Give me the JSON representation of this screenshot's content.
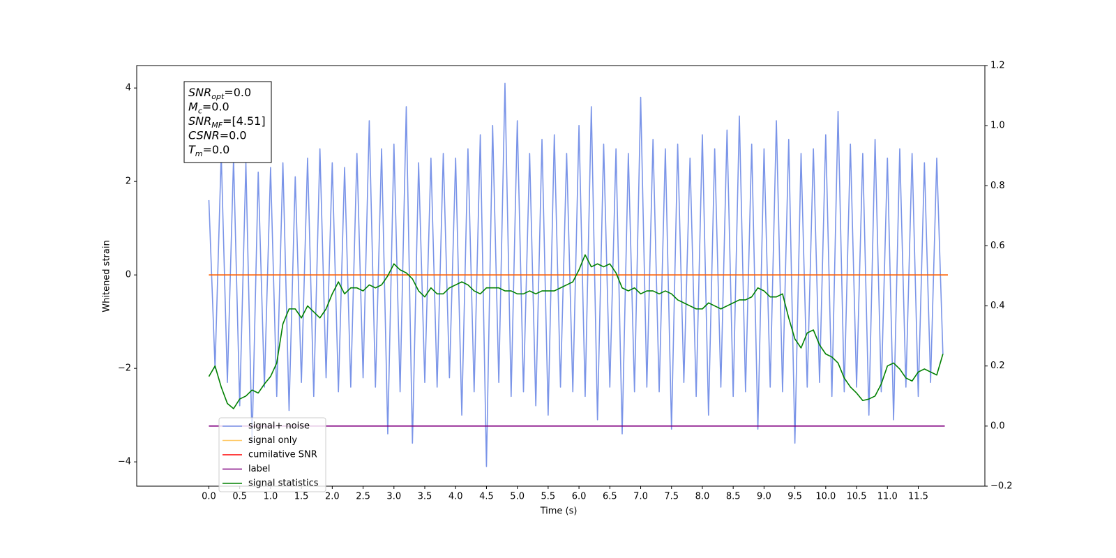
{
  "chart_data": {
    "type": "line",
    "xlabel": "Time (s)",
    "ylabel": "Whitened strain",
    "xlim": [
      -1.17,
      12.58
    ],
    "ylim": [
      -4.52,
      4.48
    ],
    "y2lim": [
      -0.2,
      1.2
    ],
    "xticks": [
      {
        "value": 0,
        "label": "0.0"
      },
      {
        "value": 0.5,
        "label": "0.5"
      },
      {
        "value": 1,
        "label": "1.0"
      },
      {
        "value": 1.5,
        "label": "1.5"
      },
      {
        "value": 2,
        "label": "2.0"
      },
      {
        "value": 2.5,
        "label": "2.5"
      },
      {
        "value": 3,
        "label": "3.0"
      },
      {
        "value": 3.5,
        "label": "3.5"
      },
      {
        "value": 4,
        "label": "4.0"
      },
      {
        "value": 4.5,
        "label": "4.5"
      },
      {
        "value": 5,
        "label": "5.0"
      },
      {
        "value": 5.5,
        "label": "5.5"
      },
      {
        "value": 6,
        "label": "6.0"
      },
      {
        "value": 6.5,
        "label": "6.5"
      },
      {
        "value": 7,
        "label": "7.0"
      },
      {
        "value": 7.5,
        "label": "7.5"
      },
      {
        "value": 8,
        "label": "8.0"
      },
      {
        "value": 8.5,
        "label": "8.5"
      },
      {
        "value": 9,
        "label": "9.0"
      },
      {
        "value": 9.5,
        "label": "9.5"
      },
      {
        "value": 10,
        "label": "10.0"
      },
      {
        "value": 10.5,
        "label": "10.5"
      },
      {
        "value": 11,
        "label": "11.0"
      },
      {
        "value": 11.5,
        "label": "11.5"
      }
    ],
    "yticks": [
      {
        "value": -4,
        "label": "−4"
      },
      {
        "value": -2,
        "label": "−2"
      },
      0,
      2,
      4
    ],
    "y2ticks": [
      {
        "value": -0.2,
        "label": "−0.2"
      },
      {
        "value": 0,
        "label": "0.0"
      },
      {
        "value": 0.2,
        "label": "0.2"
      },
      {
        "value": 0.4,
        "label": "0.4"
      },
      {
        "value": 0.6,
        "label": "0.6"
      },
      {
        "value": 0.8,
        "label": "0.8"
      },
      {
        "value": 1,
        "label": "1.0"
      },
      {
        "value": 1.2,
        "label": "1.2"
      }
    ],
    "grid": false,
    "legend": true,
    "x": [
      0,
      0.1,
      0.2,
      0.3,
      0.4,
      0.5,
      0.6,
      0.7,
      0.8,
      0.9,
      1,
      1.1,
      1.2,
      1.3,
      1.4,
      1.5,
      1.6,
      1.7,
      1.8,
      1.9,
      2,
      2.1,
      2.2,
      2.3,
      2.4,
      2.5,
      2.6,
      2.7,
      2.8,
      2.9,
      3,
      3.1,
      3.2,
      3.3,
      3.4,
      3.5,
      3.6,
      3.7,
      3.8,
      3.9,
      4,
      4.1,
      4.2,
      4.3,
      4.4,
      4.5,
      4.6,
      4.7,
      4.8,
      4.9,
      5,
      5.1,
      5.2,
      5.3,
      5.4,
      5.5,
      5.6,
      5.7,
      5.8,
      5.9,
      6,
      6.1,
      6.2,
      6.3,
      6.4,
      6.5,
      6.6,
      6.7,
      6.8,
      6.9,
      7,
      7.1,
      7.2,
      7.3,
      7.4,
      7.5,
      7.6,
      7.7,
      7.8,
      7.9,
      8,
      8.1,
      8.2,
      8.3,
      8.4,
      8.5,
      8.6,
      8.7,
      8.8,
      8.9,
      9,
      9.1,
      9.2,
      9.3,
      9.4,
      9.5,
      9.6,
      9.7,
      9.8,
      9.9,
      10,
      10.1,
      10.2,
      10.3,
      10.4,
      10.5,
      10.6,
      10.7,
      10.8,
      10.9,
      11,
      11.1,
      11.2,
      11.3,
      11.4,
      11.5,
      11.6,
      11.7,
      11.8,
      11.9
    ],
    "series": [
      {
        "name": "signal+ noise",
        "color": "#6f8be6",
        "alpha": 0.92,
        "values": [
          1.6,
          -2.0,
          2.6,
          -2.3,
          2.5,
          -2.8,
          2.4,
          -3.6,
          2.2,
          -2.4,
          2.3,
          -2.6,
          2.4,
          -2.9,
          2.1,
          -2.3,
          2.5,
          -2.6,
          2.7,
          -2.2,
          2.4,
          -2.5,
          2.3,
          -2.4,
          2.6,
          -2.2,
          3.3,
          -2.4,
          2.7,
          -3.4,
          2.8,
          -2.5,
          3.6,
          -3.6,
          2.4,
          -2.3,
          2.5,
          -2.4,
          2.6,
          -2.2,
          2.5,
          -3.0,
          2.7,
          -2.5,
          3.0,
          -4.1,
          3.2,
          -2.3,
          4.1,
          -2.6,
          3.3,
          -2.5,
          2.6,
          -2.8,
          2.9,
          -3.0,
          3.0,
          -2.4,
          2.6,
          -2.5,
          3.2,
          -2.6,
          3.6,
          -3.1,
          2.8,
          -2.4,
          2.7,
          -3.4,
          2.6,
          -2.5,
          3.8,
          -2.4,
          2.9,
          -2.5,
          2.7,
          -3.3,
          2.8,
          -2.3,
          2.5,
          -2.6,
          3.0,
          -3.0,
          2.7,
          -2.4,
          3.1,
          -2.6,
          3.4,
          -2.5,
          2.8,
          -3.3,
          2.7,
          -2.4,
          3.3,
          -2.5,
          2.9,
          -3.6,
          2.6,
          -2.4,
          2.7,
          -2.3,
          3.0,
          -2.6,
          3.5,
          -2.5,
          2.8,
          -2.4,
          2.6,
          -3.0,
          2.9,
          -2.5,
          2.5,
          -3.1,
          2.7,
          -2.4,
          2.6,
          -2.6,
          2.4,
          -2.3,
          2.5,
          -1.7
        ]
      },
      {
        "name": "cumilative SNR",
        "color": "red",
        "x": [
          0,
          11.98
        ],
        "values": [
          0,
          0
        ]
      },
      {
        "name": "signal only",
        "color": "orange",
        "alpha": 0.6,
        "x": [
          0,
          11.98
        ],
        "values": [
          0,
          0
        ]
      },
      {
        "name": "label",
        "color": "purple",
        "axis": "y2",
        "x": [
          0,
          11.93
        ],
        "values": [
          0,
          0
        ]
      },
      {
        "name": "signal statistics",
        "color": "green",
        "axis": "y2",
        "values": [
          0.165,
          0.2,
          0.13,
          0.075,
          0.058,
          0.09,
          0.1,
          0.12,
          0.11,
          0.14,
          0.165,
          0.21,
          0.34,
          0.39,
          0.39,
          0.36,
          0.4,
          0.38,
          0.36,
          0.39,
          0.44,
          0.48,
          0.44,
          0.46,
          0.46,
          0.45,
          0.47,
          0.46,
          0.47,
          0.5,
          0.54,
          0.52,
          0.51,
          0.49,
          0.45,
          0.43,
          0.46,
          0.44,
          0.44,
          0.46,
          0.47,
          0.48,
          0.47,
          0.45,
          0.44,
          0.46,
          0.46,
          0.46,
          0.45,
          0.45,
          0.44,
          0.44,
          0.45,
          0.44,
          0.45,
          0.45,
          0.45,
          0.46,
          0.47,
          0.48,
          0.52,
          0.57,
          0.53,
          0.54,
          0.53,
          0.54,
          0.51,
          0.46,
          0.45,
          0.46,
          0.44,
          0.45,
          0.45,
          0.44,
          0.45,
          0.44,
          0.42,
          0.41,
          0.4,
          0.39,
          0.39,
          0.41,
          0.4,
          0.39,
          0.4,
          0.41,
          0.42,
          0.42,
          0.43,
          0.46,
          0.45,
          0.43,
          0.43,
          0.44,
          0.36,
          0.29,
          0.26,
          0.31,
          0.32,
          0.27,
          0.24,
          0.23,
          0.21,
          0.16,
          0.13,
          0.11,
          0.085,
          0.09,
          0.1,
          0.14,
          0.2,
          0.21,
          0.19,
          0.16,
          0.15,
          0.18,
          0.19,
          0.18,
          0.17,
          0.24
        ]
      }
    ],
    "legend_order": [
      0,
      2,
      1,
      3,
      4
    ],
    "annotations": [
      {
        "base": "SNR",
        "sub": "opt",
        "text": "=0.0"
      },
      {
        "base": "M",
        "sub": "c",
        "text": "=0.0"
      },
      {
        "base": "SNR",
        "sub": "MF",
        "text": "=[4.51]"
      },
      {
        "base": "CSNR",
        "text": "=0.0"
      },
      {
        "base": "T",
        "sub": "m",
        "text": "=0.0"
      }
    ]
  }
}
